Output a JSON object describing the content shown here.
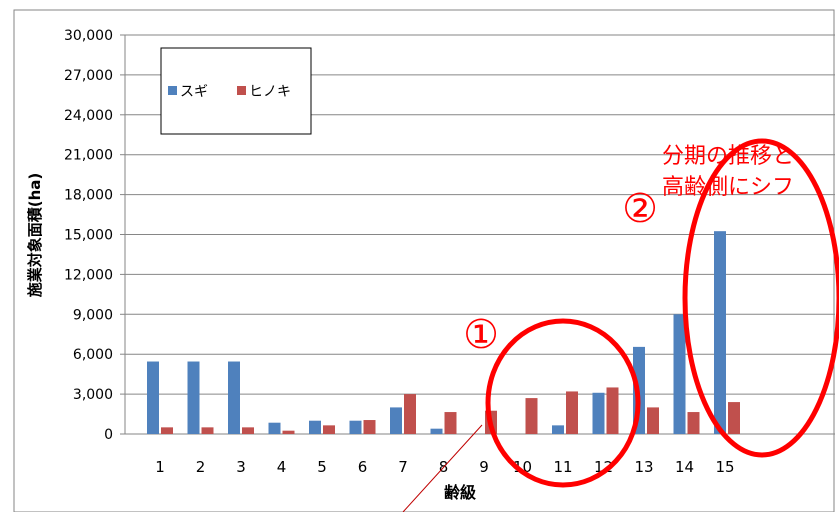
{
  "chart_data": {
    "type": "bar",
    "xlabel": "齢級",
    "ylabel": "施業対象面積(ha)",
    "ylim": [
      0,
      30000
    ],
    "y_ticks": [
      0,
      3000,
      6000,
      9000,
      12000,
      15000,
      18000,
      21000,
      24000,
      27000,
      30000
    ],
    "y_tick_labels": [
      "0",
      "3,000",
      "6,000",
      "9,000",
      "12,000",
      "15,000",
      "18,000",
      "21,000",
      "24,000",
      "27,000",
      "30,000"
    ],
    "grid": true,
    "legend_position": "top-left",
    "categories": [
      "1",
      "2",
      "3",
      "4",
      "5",
      "6",
      "7",
      "8",
      "9",
      "10",
      "11",
      "12",
      "13",
      "14",
      "15"
    ],
    "series": [
      {
        "name": "スギ",
        "color": "#4F81BD",
        "values": [
          5450,
          5450,
          5450,
          850,
          1000,
          1000,
          2000,
          400,
          0,
          0,
          650,
          3100,
          6550,
          9000,
          15250
        ]
      },
      {
        "name": "ヒノキ",
        "color": "#C0504D",
        "values": [
          500,
          500,
          500,
          250,
          650,
          1050,
          3000,
          1650,
          1750,
          2700,
          3200,
          3500,
          2000,
          1650,
          2400
        ]
      }
    ],
    "annotations": [
      {
        "label": "①"
      },
      {
        "label": "②"
      },
      {
        "text_line1": "分期の推移と",
        "text_line2": "高齢側にシフ"
      }
    ]
  },
  "colors": {
    "annotation_red": "#FF0000",
    "grid": "#868686",
    "axis": "#868686",
    "frame": "#868686"
  }
}
